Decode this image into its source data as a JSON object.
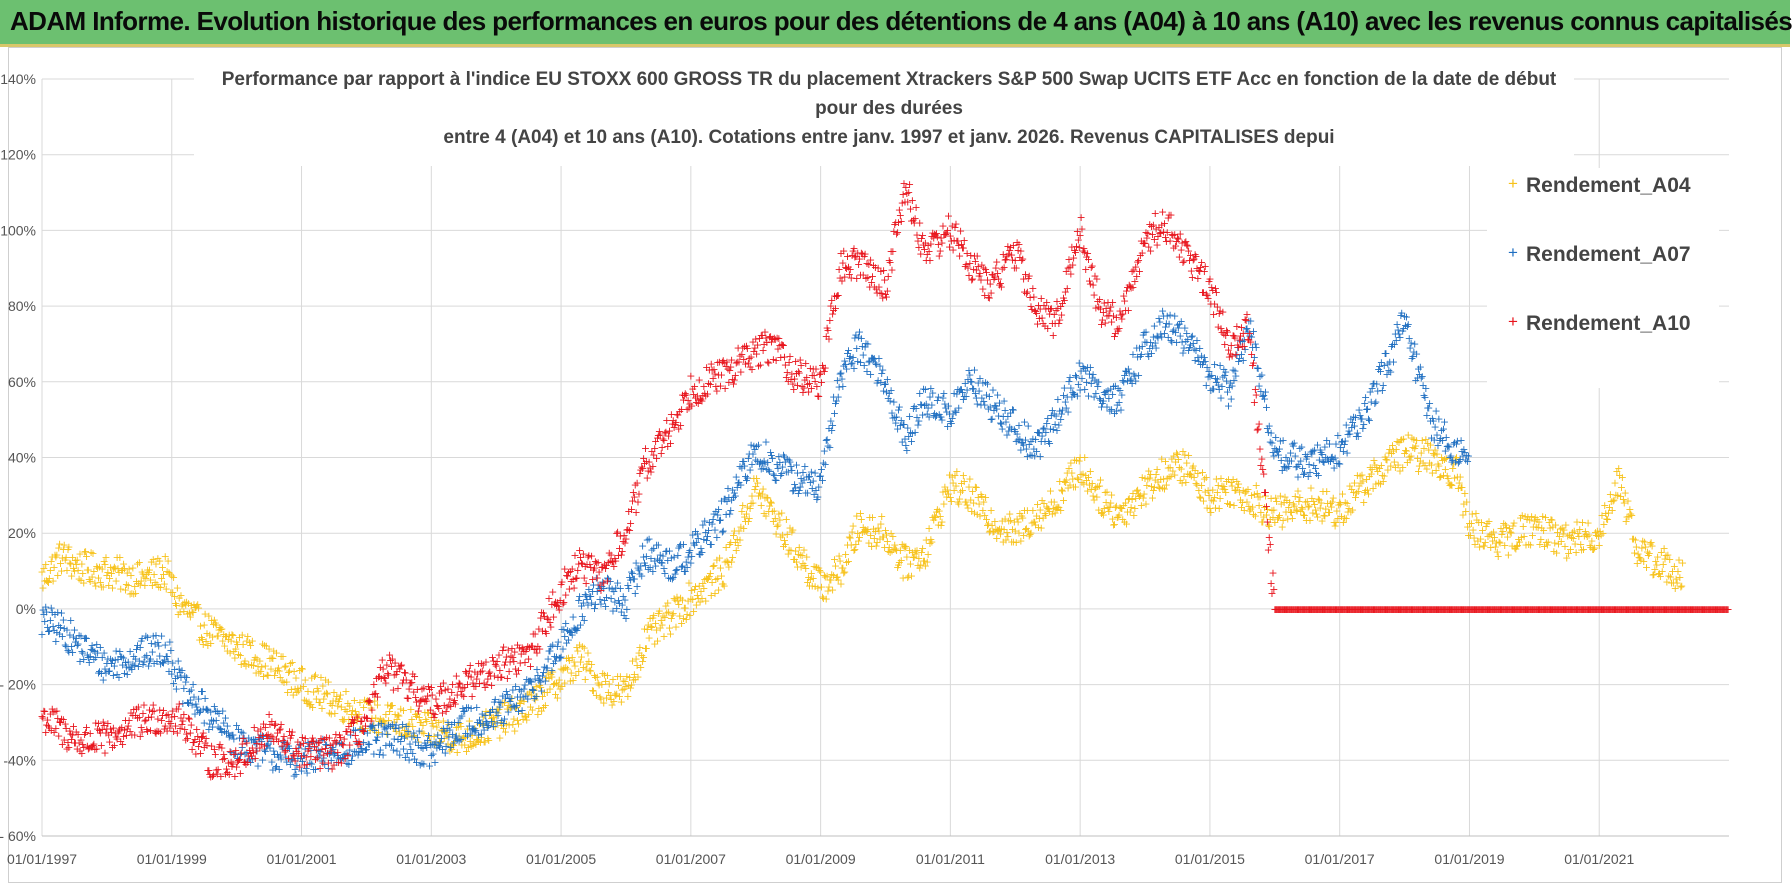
{
  "header": {
    "title": "ADAM Informe. Evolution historique des performances en euros pour des détentions de 4 ans (A04) à 10 ans (A10) avec les revenus connus capitalisés"
  },
  "colors": {
    "header_bg": "#6cc070",
    "a04": "#f7c21a",
    "a07": "#1f6fc1",
    "a10": "#e8141c",
    "grid": "#d9d9d9"
  },
  "chart_data": {
    "type": "scatter",
    "title_lines": [
      "Performance par rapport à l'indice EU STOXX 600 GROSS TR  du placement Xtrackers S&P 500 Swap UCITS ETF Acc en fonction de la date de début",
      "pour des durées",
      "entre 4 (A04) et 10 ans (A10). Cotations entre janv. 1997 et janv. 2026. Revenus CAPITALISES depui"
    ],
    "xlabel": "",
    "ylabel": "",
    "ylim": [
      -60,
      140
    ],
    "xlim": [
      1997.0,
      2023.0
    ],
    "y_ticks": [
      -60,
      -40,
      -20,
      0,
      20,
      40,
      60,
      80,
      100,
      120,
      140
    ],
    "y_tick_labels": [
      "- 60%",
      "-40%",
      "- 20%",
      "0%",
      "20%",
      "40%",
      "60%",
      "80%",
      "100%",
      "120%",
      "140%"
    ],
    "x_ticks": [
      1997,
      1999,
      2001,
      2003,
      2005,
      2007,
      2009,
      2011,
      2013,
      2015,
      2017,
      2019,
      2021
    ],
    "x_tick_labels": [
      "01/01/1997",
      "01/01/1999",
      "01/01/2001",
      "01/01/2003",
      "01/01/2005",
      "01/01/2007",
      "01/01/2009",
      "01/01/2011",
      "01/01/2013",
      "01/01/2015",
      "01/01/2017",
      "01/01/2019",
      "01/01/2021"
    ],
    "legend_position": "top-right",
    "series": [
      {
        "name": "Rendement_A04",
        "color_key": "a04",
        "x": [
          1997.0,
          1997.3,
          1997.6,
          1998.0,
          1998.5,
          1998.9,
          1999.1,
          1999.5,
          2000.0,
          2000.5,
          2001.0,
          2001.5,
          2002.0,
          2002.5,
          2003.0,
          2003.5,
          2004.0,
          2004.5,
          2005.0,
          2005.3,
          2005.6,
          2006.0,
          2006.3,
          2006.7,
          2007.0,
          2007.5,
          2008.0,
          2008.3,
          2008.6,
          2009.0,
          2009.3,
          2009.6,
          2010.0,
          2010.3,
          2010.6,
          2011.0,
          2011.3,
          2011.6,
          2012.0,
          2012.3,
          2012.6,
          2013.0,
          2013.3,
          2013.6,
          2014.0,
          2014.3,
          2014.6,
          2015.0,
          2015.3,
          2015.6,
          2016.0,
          2016.5,
          2017.0,
          2017.5,
          2018.0,
          2018.4,
          2018.8,
          2019.0,
          2019.5,
          2020.0,
          2020.5,
          2021.0,
          2021.3,
          2021.6,
          2022.0,
          2022.3
        ],
        "y": [
          8,
          14,
          11,
          10,
          8,
          10,
          2,
          -5,
          -10,
          -14,
          -20,
          -24,
          -28,
          -30,
          -32,
          -34,
          -30,
          -26,
          -18,
          -13,
          -20,
          -22,
          -8,
          -2,
          3,
          10,
          32,
          24,
          16,
          6,
          10,
          22,
          20,
          12,
          15,
          33,
          30,
          24,
          20,
          25,
          28,
          38,
          30,
          25,
          32,
          36,
          38,
          30,
          32,
          30,
          25,
          28,
          26,
          35,
          42,
          40,
          36,
          22,
          18,
          22,
          18,
          20,
          35,
          15,
          12,
          8
        ]
      },
      {
        "name": "Rendement_A07",
        "color_key": "a07",
        "x": [
          1997.0,
          1997.3,
          1997.6,
          1998.0,
          1998.5,
          1998.9,
          1999.2,
          1999.6,
          2000.0,
          2000.5,
          2001.0,
          2001.5,
          2002.0,
          2002.5,
          2003.0,
          2003.5,
          2004.0,
          2004.5,
          2005.0,
          2005.3,
          2005.6,
          2006.0,
          2006.3,
          2006.7,
          2007.0,
          2007.5,
          2008.0,
          2008.3,
          2008.6,
          2009.0,
          2009.3,
          2009.6,
          2010.0,
          2010.3,
          2010.6,
          2011.0,
          2011.3,
          2011.6,
          2012.0,
          2012.3,
          2012.6,
          2013.0,
          2013.3,
          2013.6,
          2014.0,
          2014.3,
          2014.6,
          2015.0,
          2015.3,
          2015.6,
          2016.0,
          2016.5,
          2017.0,
          2017.5,
          2018.0,
          2018.4,
          2018.8,
          2019.0
        ],
        "y": [
          -3,
          -5,
          -10,
          -15,
          -12,
          -10,
          -22,
          -28,
          -35,
          -38,
          -40,
          -38,
          -35,
          -34,
          -38,
          -30,
          -28,
          -22,
          -10,
          0,
          5,
          2,
          15,
          12,
          15,
          25,
          42,
          38,
          35,
          32,
          62,
          70,
          60,
          45,
          55,
          52,
          60,
          55,
          48,
          42,
          50,
          62,
          58,
          55,
          70,
          75,
          72,
          62,
          58,
          75,
          42,
          38,
          42,
          55,
          76,
          50,
          42,
          38
        ]
      },
      {
        "name": "Rendement_A10",
        "color_key": "a10",
        "x": [
          1997.0,
          1997.3,
          1997.6,
          1998.0,
          1998.5,
          1998.9,
          1999.2,
          1999.6,
          2000.0,
          2000.5,
          2001.0,
          2001.5,
          2002.0,
          2002.3,
          2002.6,
          2003.0,
          2003.5,
          2004.0,
          2004.5,
          2005.0,
          2005.3,
          2005.6,
          2006.0,
          2006.3,
          2006.7,
          2007.0,
          2007.5,
          2008.0,
          2008.3,
          2008.6,
          2009.0,
          2009.3,
          2009.6,
          2010.0,
          2010.3,
          2010.6,
          2011.0,
          2011.3,
          2011.6,
          2012.0,
          2012.3,
          2012.6,
          2013.0,
          2013.3,
          2013.6,
          2014.0,
          2014.3,
          2014.6,
          2015.0,
          2015.3,
          2015.6,
          2016.0,
          2017.0,
          2018.0,
          2019.0,
          2020.0,
          2021.0,
          2022.0,
          2023.0
        ],
        "y": [
          -28,
          -32,
          -35,
          -34,
          -30,
          -28,
          -30,
          -40,
          -40,
          -32,
          -38,
          -38,
          -30,
          -15,
          -20,
          -25,
          -20,
          -15,
          -12,
          5,
          12,
          8,
          20,
          38,
          48,
          58,
          62,
          68,
          70,
          62,
          60,
          90,
          92,
          85,
          112,
          95,
          100,
          92,
          85,
          95,
          80,
          75,
          100,
          80,
          75,
          98,
          102,
          95,
          85,
          70,
          75,
          0,
          0,
          0,
          0,
          0,
          0,
          0,
          0
        ]
      }
    ]
  }
}
